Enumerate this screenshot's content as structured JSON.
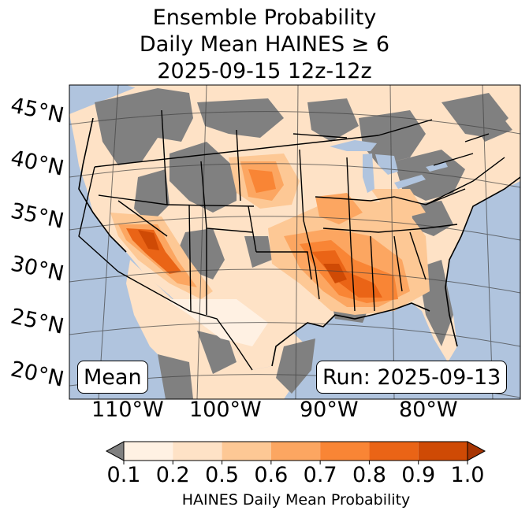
{
  "title": {
    "line1": "Ensemble Probability",
    "line2": "Daily Mean HAINES ≥ 6",
    "line3": "2025-09-15 12z-12z"
  },
  "map": {
    "region": "Continental United States",
    "latitude_labels": [
      "45°N",
      "40°N",
      "35°N",
      "30°N",
      "25°N",
      "20°N"
    ],
    "longitude_labels": [
      "110°W",
      "100°W",
      "90°W",
      "80°W"
    ],
    "stat_label": "Mean",
    "run_label": "Run: 2025-09-13",
    "colors": {
      "ocean": "#b0c4de",
      "land_masked": "#808080",
      "lake": "#b0c4de"
    }
  },
  "colorbar": {
    "label": "HAINES Daily Mean Probability",
    "ticks": [
      "0.1",
      "0.2",
      "0.5",
      "0.6",
      "0.7",
      "0.8",
      "0.9",
      "1.0"
    ],
    "colors": [
      "#fff1e3",
      "#fee2c6",
      "#fdc895",
      "#fca661",
      "#f98535",
      "#ea6416",
      "#cf4a05",
      "#a73503"
    ],
    "under_color": "#808080"
  },
  "chart_data": {
    "type": "heatmap",
    "title": "Ensemble Probability Daily Mean HAINES ≥ 6 2025-09-15 12z-12z",
    "variable": "HAINES Daily Mean Probability",
    "bins": [
      0.1,
      0.2,
      0.5,
      0.6,
      0.7,
      0.8,
      0.9,
      1.0
    ],
    "highest_probability_regions": [
      "Southern California / Arizona border",
      "Lower Mississippi Valley",
      "Oklahoma / Arkansas",
      "Eastern Colorado / Nebraska"
    ]
  }
}
